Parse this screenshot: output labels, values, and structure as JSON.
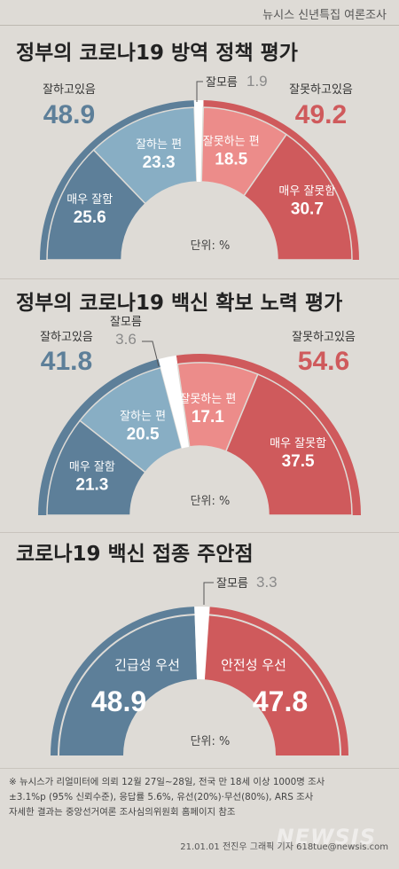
{
  "header": {
    "brand": "뉴시스 신년특집 여론조사"
  },
  "chart_data": [
    {
      "type": "pie",
      "title": "정부의 코로나19 방역 정책 평가",
      "unit_label": "단위: %",
      "groups": [
        {
          "label": "잘하고있음",
          "value": 48.9
        },
        {
          "label": "잘모름",
          "value": 1.9
        },
        {
          "label": "잘못하고있음",
          "value": 49.2
        }
      ],
      "slices": [
        {
          "label": "매우 잘함",
          "value": 25.6,
          "color": "#5d7f99"
        },
        {
          "label": "잘하는 편",
          "value": 23.3,
          "color": "#88aec4"
        },
        {
          "label": "잘모름",
          "value": 1.9,
          "color": "#ffffff"
        },
        {
          "label": "잘못하는 편",
          "value": 18.5,
          "color": "#ec8c8a"
        },
        {
          "label": "매우 잘못함",
          "value": 30.7,
          "color": "#cf5a5c"
        }
      ]
    },
    {
      "type": "pie",
      "title": "정부의 코로나19 백신 확보 노력 평가",
      "unit_label": "단위: %",
      "groups": [
        {
          "label": "잘하고있음",
          "value": 41.8
        },
        {
          "label": "잘모름",
          "value": 3.6
        },
        {
          "label": "잘못하고있음",
          "value": 54.6
        }
      ],
      "slices": [
        {
          "label": "매우 잘함",
          "value": 21.3,
          "color": "#5d7f99"
        },
        {
          "label": "잘하는 편",
          "value": 20.5,
          "color": "#88aec4"
        },
        {
          "label": "잘모름",
          "value": 3.6,
          "color": "#ffffff"
        },
        {
          "label": "잘못하는 편",
          "value": 17.1,
          "color": "#ec8c8a"
        },
        {
          "label": "매우 잘못함",
          "value": 37.5,
          "color": "#cf5a5c"
        }
      ]
    },
    {
      "type": "pie",
      "title": "코로나19 백신 접종 주안점",
      "unit_label": "단위: %",
      "slices": [
        {
          "label": "긴급성 우선",
          "value": 48.9,
          "color": "#5d7f99"
        },
        {
          "label": "잘모름",
          "value": 3.3,
          "color": "#ffffff"
        },
        {
          "label": "안전성 우선",
          "value": 47.8,
          "color": "#cf5a5c"
        }
      ]
    }
  ],
  "footnote": [
    "※ 뉴시스가 리얼미터에 의뢰 12월 27일~28일, 전국 만 18세 이상 1000명 조사",
    "±3.1%p (95% 신뢰수준), 응답률 5.6%, 유선(20%)·무선(80%), ARS 조사",
    "자세한 결과는 중앙선거여론 조사심의위원회 홈페이지 참조"
  ],
  "credit": "21.01.01 전진우 그래픽 기자 618tue@newsis.com",
  "watermark": "NEWSIS",
  "colors": {
    "blue_dark": "#5d7f99",
    "blue_light": "#88aec4",
    "red_light": "#ec8c8a",
    "red_dark": "#cf5a5c",
    "gray_text": "#8a8a8a"
  }
}
